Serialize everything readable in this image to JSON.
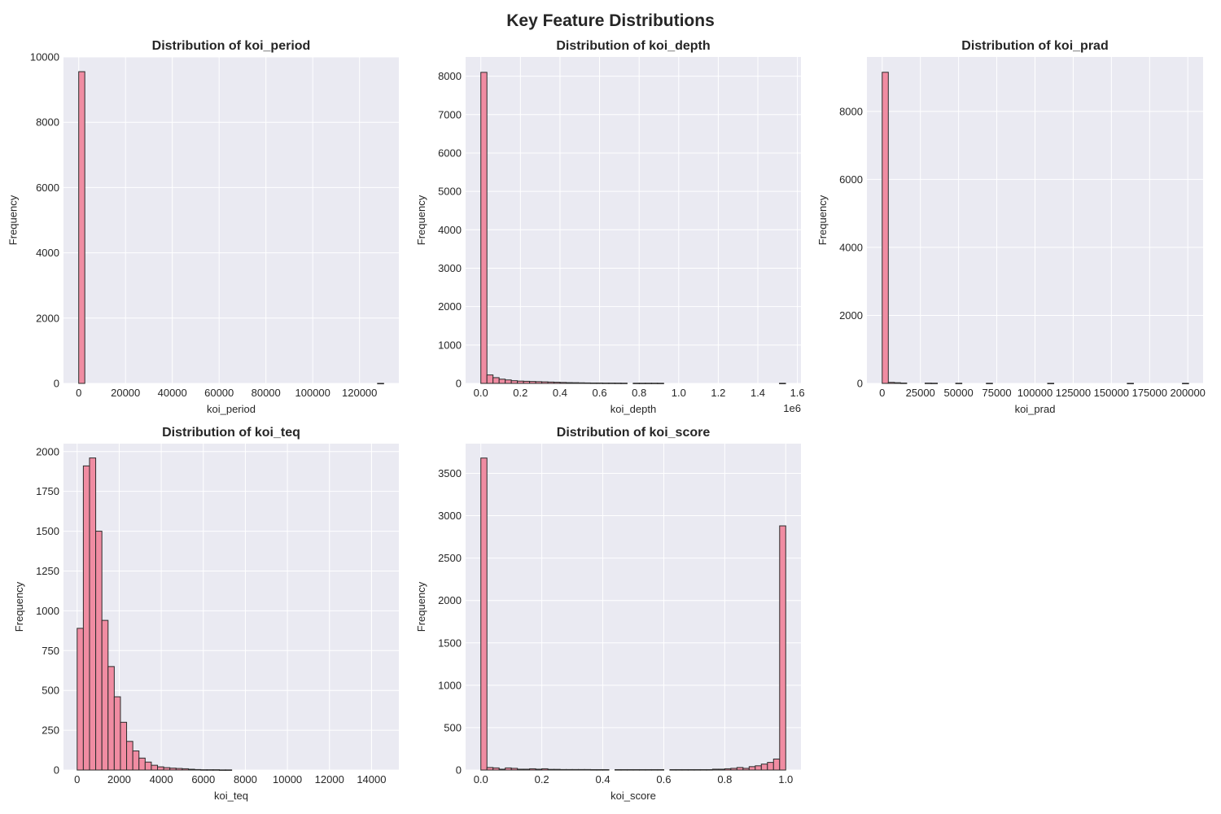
{
  "figure": {
    "title": "Key Feature Distributions"
  },
  "colors": {
    "bar_fill": "#f08ca2",
    "bar_edge": "#2b2b2b",
    "axes_bg": "#eaeaf2",
    "grid": "#ffffff"
  },
  "chart_data": [
    {
      "type": "bar",
      "title": "Distribution of koi_period",
      "xlabel": "koi_period",
      "ylabel": "Frequency",
      "xlim": [
        -6500,
        136800
      ],
      "ylim": [
        0,
        10000
      ],
      "xticks": [
        0,
        20000,
        40000,
        60000,
        80000,
        100000,
        120000
      ],
      "xtick_labels": [
        "0",
        "20000",
        "40000",
        "60000",
        "80000",
        "100000",
        "120000"
      ],
      "yticks": [
        0,
        2000,
        4000,
        6000,
        8000,
        10000
      ],
      "ytick_labels": [
        "0",
        "2000",
        "4000",
        "6000",
        "8000",
        "10000"
      ],
      "offset_label": "",
      "bin_start": 0,
      "bin_width": 2606,
      "counts": [
        9550,
        0,
        0,
        0,
        0,
        0,
        0,
        0,
        0,
        0,
        0,
        0,
        0,
        0,
        0,
        0,
        0,
        0,
        0,
        0,
        0,
        0,
        0,
        0,
        0,
        0,
        0,
        0,
        0,
        0,
        0,
        0,
        0,
        0,
        0,
        0,
        0,
        0,
        0,
        0,
        0,
        0,
        0,
        0,
        0,
        0,
        0,
        0,
        0,
        1
      ],
      "grid": true
    },
    {
      "type": "bar",
      "title": "Distribution of koi_depth",
      "xlabel": "koi_depth",
      "ylabel": "Frequency",
      "xlim": [
        -0.077,
        1.618
      ],
      "ylim": [
        0,
        8500
      ],
      "xticks": [
        0,
        0.2,
        0.4,
        0.6,
        0.8,
        1.0,
        1.2,
        1.4,
        1.6
      ],
      "xtick_labels": [
        "0.0",
        "0.2",
        "0.4",
        "0.6",
        "0.8",
        "1.0",
        "1.2",
        "1.4",
        "1.6"
      ],
      "yticks": [
        0,
        1000,
        2000,
        3000,
        4000,
        5000,
        6000,
        7000,
        8000
      ],
      "ytick_labels": [
        "0",
        "1000",
        "2000",
        "3000",
        "4000",
        "5000",
        "6000",
        "7000",
        "8000"
      ],
      "offset_label": "1e6",
      "bin_start": 0,
      "bin_width": 0.0308,
      "counts": [
        8100,
        220,
        150,
        110,
        90,
        70,
        60,
        55,
        50,
        45,
        40,
        35,
        30,
        25,
        20,
        18,
        15,
        12,
        10,
        10,
        8,
        8,
        7,
        6,
        0,
        5,
        5,
        5,
        5,
        4,
        0,
        0,
        0,
        0,
        0,
        0,
        0,
        0,
        0,
        0,
        0,
        0,
        0,
        0,
        0,
        0,
        0,
        0,
        0,
        3
      ],
      "grid": true
    },
    {
      "type": "bar",
      "title": "Distribution of koi_prad",
      "xlabel": "koi_prad",
      "ylabel": "Frequency",
      "xlim": [
        -10000,
        210000
      ],
      "ylim": [
        0,
        9600
      ],
      "xticks": [
        0,
        25000,
        50000,
        75000,
        100000,
        125000,
        150000,
        175000,
        200000
      ],
      "xtick_labels": [
        "0",
        "25000",
        "50000",
        "75000",
        "100000",
        "125000",
        "150000",
        "175000",
        "200000"
      ],
      "yticks": [
        0,
        2000,
        4000,
        6000,
        8000
      ],
      "ytick_labels": [
        "0",
        "2000",
        "4000",
        "6000",
        "8000"
      ],
      "offset_label": "",
      "bin_start": 0,
      "bin_width": 4010,
      "counts": [
        9150,
        30,
        20,
        10,
        0,
        0,
        0,
        8,
        6,
        0,
        0,
        0,
        5,
        0,
        0,
        0,
        0,
        4,
        0,
        0,
        0,
        0,
        0,
        0,
        0,
        0,
        0,
        3,
        0,
        0,
        0,
        0,
        0,
        0,
        0,
        0,
        0,
        0,
        0,
        0,
        2,
        0,
        0,
        0,
        0,
        0,
        0,
        0,
        0,
        2
      ],
      "grid": true
    },
    {
      "type": "bar",
      "title": "Distribution of koi_teq",
      "xlabel": "koi_teq",
      "ylabel": "Frequency",
      "xlim": [
        -650,
        15300
      ],
      "ylim": [
        0,
        2050
      ],
      "xticks": [
        0,
        2000,
        4000,
        6000,
        8000,
        10000,
        12000,
        14000
      ],
      "xtick_labels": [
        "0",
        "2000",
        "4000",
        "6000",
        "8000",
        "10000",
        "12000",
        "14000"
      ],
      "yticks": [
        0,
        250,
        500,
        750,
        1000,
        1250,
        1500,
        1750,
        2000
      ],
      "ytick_labels": [
        "0",
        "250",
        "500",
        "750",
        "1000",
        "1250",
        "1500",
        "1750",
        "2000"
      ],
      "offset_label": "",
      "bin_start": 0,
      "bin_width": 294,
      "counts": [
        890,
        1910,
        1960,
        1500,
        940,
        650,
        460,
        300,
        180,
        120,
        75,
        50,
        30,
        20,
        15,
        12,
        10,
        8,
        5,
        3,
        2,
        2,
        2,
        1,
        1,
        0,
        0,
        0,
        0,
        0,
        0,
        0,
        0,
        0,
        0,
        0,
        0,
        0,
        0,
        0,
        0,
        0,
        0,
        0,
        0,
        0,
        0,
        0,
        0,
        0
      ],
      "grid": true
    },
    {
      "type": "bar",
      "title": "Distribution of koi_score",
      "xlabel": "koi_score",
      "ylabel": "Frequency",
      "xlim": [
        -0.05,
        1.05
      ],
      "ylim": [
        0,
        3850
      ],
      "xticks": [
        0,
        0.2,
        0.4,
        0.6,
        0.8,
        1.0
      ],
      "xtick_labels": [
        "0.0",
        "0.2",
        "0.4",
        "0.6",
        "0.8",
        "1.0"
      ],
      "yticks": [
        0,
        500,
        1000,
        1500,
        2000,
        2500,
        3000,
        3500
      ],
      "ytick_labels": [
        "0",
        "500",
        "1000",
        "1500",
        "2000",
        "2500",
        "3000",
        "3500"
      ],
      "offset_label": "",
      "bin_start": 0,
      "bin_width": 0.02,
      "counts": [
        3680,
        30,
        25,
        10,
        25,
        20,
        10,
        10,
        15,
        10,
        15,
        8,
        8,
        6,
        6,
        6,
        6,
        6,
        5,
        5,
        5,
        0,
        5,
        5,
        5,
        5,
        5,
        5,
        5,
        5,
        0,
        5,
        5,
        5,
        5,
        5,
        5,
        5,
        10,
        10,
        15,
        20,
        30,
        20,
        40,
        50,
        70,
        90,
        130,
        270
      ],
      "extra_last": 2880,
      "grid": true
    }
  ]
}
